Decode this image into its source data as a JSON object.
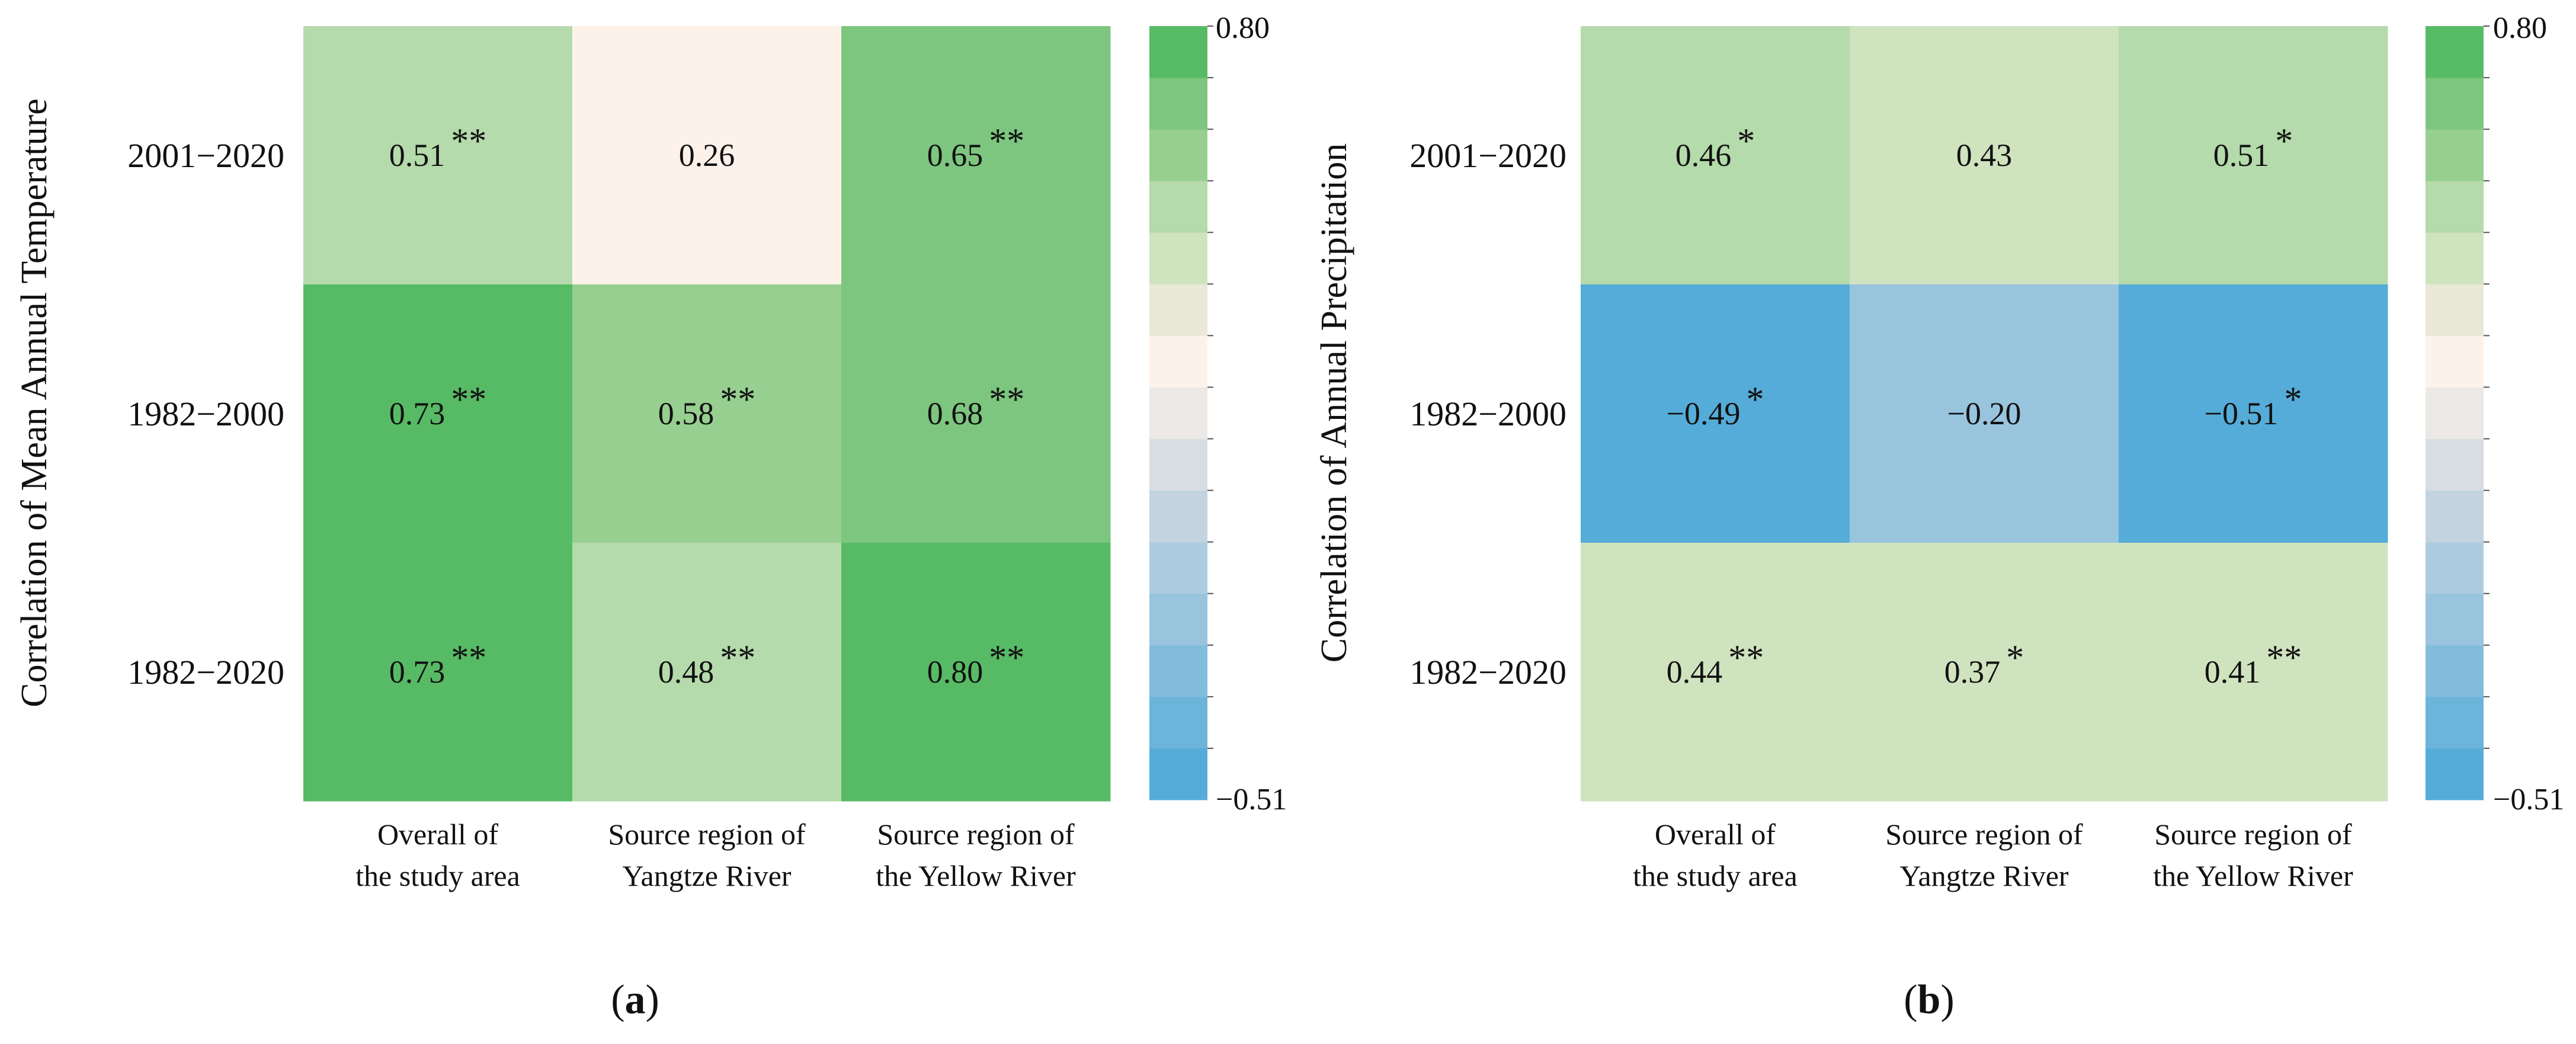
{
  "chart_data": [
    {
      "type": "heatmap",
      "panel_label": "a",
      "ylabel": "Correlation of Mean Annual Temperature",
      "rows": [
        "2001−2020",
        "1982−2000",
        "1982−2020"
      ],
      "columns": [
        [
          "Overall of",
          "the study area"
        ],
        [
          "Source region of",
          "Yangtze River"
        ],
        [
          "Source region of",
          "the Yellow River"
        ]
      ],
      "values": [
        [
          0.51,
          0.26,
          0.65
        ],
        [
          0.73,
          0.58,
          0.68
        ],
        [
          0.73,
          0.48,
          0.8
        ]
      ],
      "value_labels": [
        [
          "0.51",
          "0.26",
          "0.65"
        ],
        [
          "0.73",
          "0.58",
          "0.68"
        ],
        [
          "0.73",
          "0.48",
          "0.80"
        ]
      ],
      "significance": [
        [
          "**",
          "",
          "**"
        ],
        [
          "**",
          "**",
          "**"
        ],
        [
          "**",
          "**",
          "**"
        ]
      ],
      "colorbar": {
        "min": -0.51,
        "max": 0.8,
        "min_label": "−0.51",
        "max_label": "0.80"
      }
    },
    {
      "type": "heatmap",
      "panel_label": "b",
      "ylabel": "Correlation  of Annual Precipitation",
      "rows": [
        "2001−2020",
        "1982−2000",
        "1982−2020"
      ],
      "columns": [
        [
          "Overall of",
          "the study area"
        ],
        [
          "Source region of",
          "Yangtze River"
        ],
        [
          "Source region of",
          "the Yellow River"
        ]
      ],
      "values": [
        [
          0.46,
          0.43,
          0.51
        ],
        [
          -0.49,
          -0.2,
          -0.51
        ],
        [
          0.44,
          0.37,
          0.41
        ]
      ],
      "value_labels": [
        [
          "0.46",
          "0.43",
          "0.51"
        ],
        [
          "−0.49",
          "−0.20",
          "−0.51"
        ],
        [
          "0.44",
          "0.37",
          "0.41"
        ]
      ],
      "significance": [
        [
          "*",
          "",
          "*"
        ],
        [
          "*",
          "",
          "*"
        ],
        [
          "**",
          "*",
          "**"
        ]
      ],
      "colorbar": {
        "min": -0.51,
        "max": 0.8,
        "min_label": "−0.51",
        "max_label": "0.80"
      }
    }
  ],
  "colormap": [
    "#56acd8",
    "#6bb4da",
    "#82bcdc",
    "#98c4de",
    "#adcce0",
    "#c3d3e0",
    "#d8dde2",
    "#ebe8e6",
    "#fdf2ea",
    "#eae8d6",
    "#d0e3bf",
    "#b5daab",
    "#97cf90",
    "#7dc67f",
    "#57bb65"
  ]
}
